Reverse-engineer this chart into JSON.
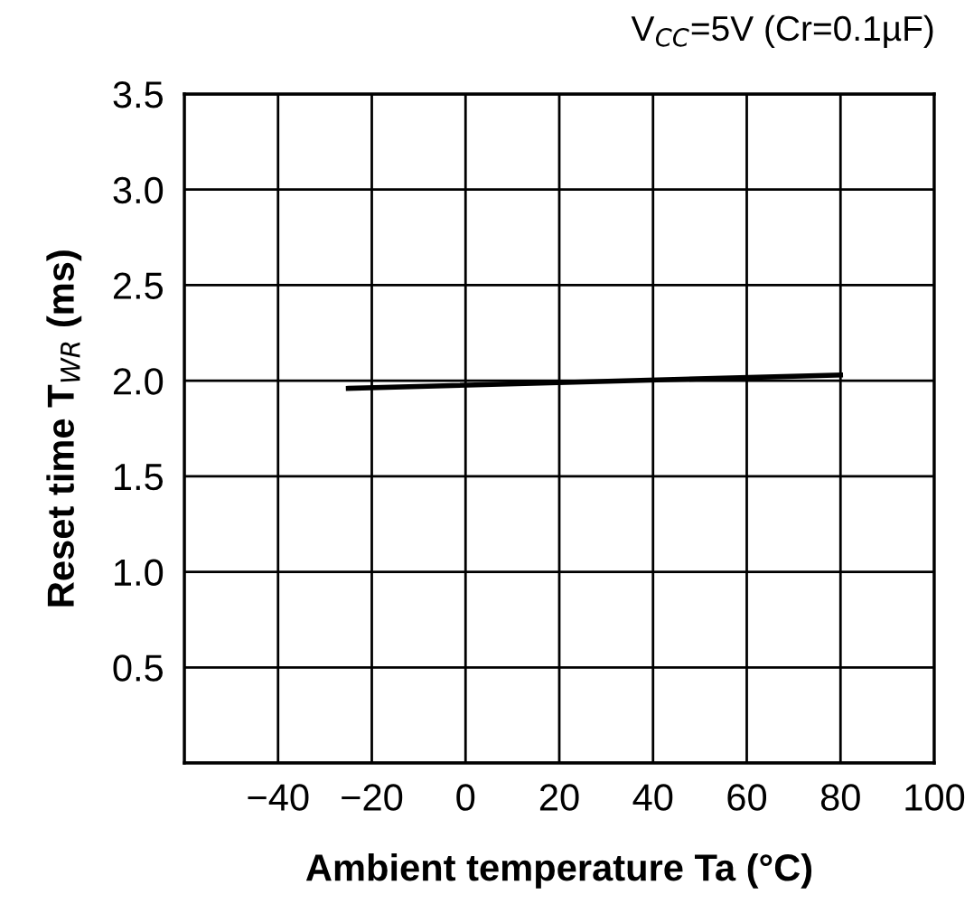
{
  "chart_data": {
    "type": "line",
    "xlabel": "Ambient temperature Ta (°C)",
    "ylabel": "Reset time T$_{WR}$ (ms)",
    "annotations": [
      "V$_{CC}$=5V (Cr=0.1µF)"
    ],
    "series": [
      {
        "color": "#000000",
        "x": [
          -25,
          80
        ],
        "values": [
          1.96,
          2.03
        ]
      }
    ],
    "xlim": [
      -60,
      100
    ],
    "ylim": [
      0,
      3.5
    ],
    "xticks": [
      {
        "value": -60,
        "label": null
      },
      {
        "value": -40,
        "label": "−40"
      },
      {
        "value": -20,
        "label": "−20"
      },
      0,
      20,
      40,
      60,
      80,
      100
    ],
    "yticks": [
      {
        "value": 0,
        "label": null
      },
      {
        "value": 0.5,
        "label": "0.5"
      },
      {
        "value": 1.0,
        "label": "1.0"
      },
      {
        "value": 1.5,
        "label": "1.5"
      },
      {
        "value": 2.0,
        "label": "2.0"
      },
      {
        "value": 2.5,
        "label": "2.5"
      },
      {
        "value": 3.0,
        "label": "3.0"
      },
      {
        "value": 3.5,
        "label": "3.5"
      }
    ],
    "grid": true,
    "legend": false,
    "marker": "none",
    "line_style": "solid"
  }
}
